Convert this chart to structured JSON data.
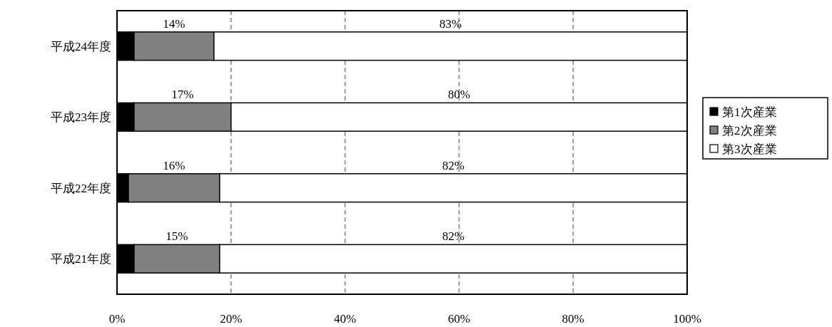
{
  "chart_data": {
    "type": "bar",
    "orientation": "horizontal",
    "stacked": true,
    "categories": [
      "平成24年度",
      "平成23年度",
      "平成22年度",
      "平成21年度"
    ],
    "series": [
      {
        "name": "第1次産業",
        "color": "#000000",
        "values": [
          3,
          3,
          2,
          3
        ],
        "value_labels": [
          null,
          null,
          null,
          null
        ]
      },
      {
        "name": "第2次産業",
        "color": "#808080",
        "values": [
          14,
          17,
          16,
          15
        ],
        "value_labels": [
          "14%",
          "17%",
          "16%",
          "15%"
        ]
      },
      {
        "name": "第3次産業",
        "color": "#ffffff",
        "values": [
          83,
          80,
          82,
          82
        ],
        "value_labels": [
          "83%",
          "80%",
          "82%",
          "82%"
        ]
      }
    ],
    "xlim": [
      0,
      100
    ],
    "xticks": [
      {
        "value": 0,
        "label": "0%"
      },
      {
        "value": 20,
        "label": "20%"
      },
      {
        "value": 40,
        "label": "40%"
      },
      {
        "value": 60,
        "label": "60%"
      },
      {
        "value": 80,
        "label": "80%"
      },
      {
        "value": 100,
        "label": "100%"
      }
    ],
    "grid": "x",
    "legend": "right"
  }
}
